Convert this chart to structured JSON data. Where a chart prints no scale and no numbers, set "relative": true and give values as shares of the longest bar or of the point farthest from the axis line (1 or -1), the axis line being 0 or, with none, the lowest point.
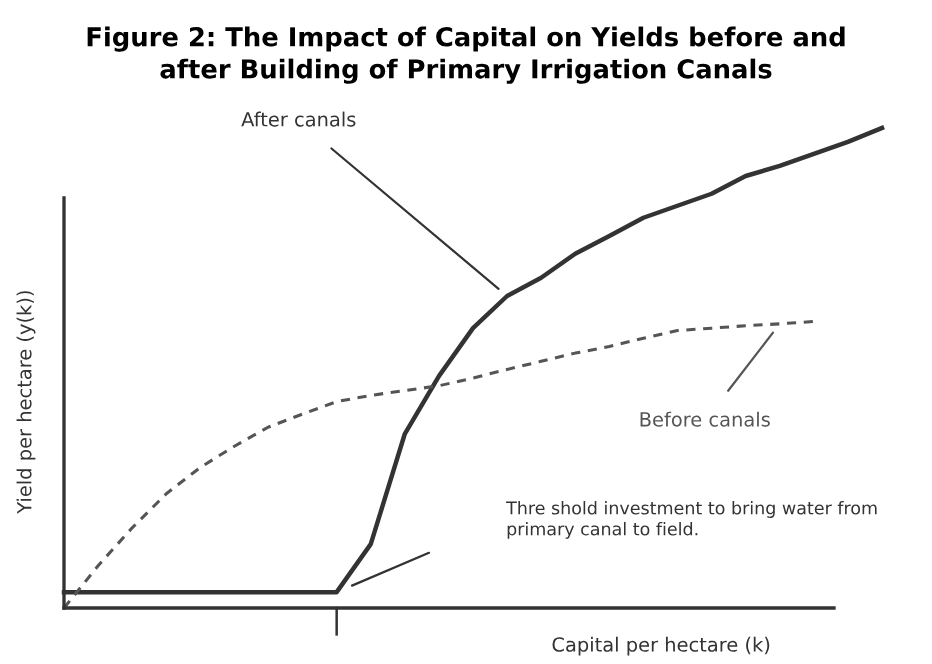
{
  "chart_data": {
    "type": "line",
    "relative": true,
    "title": "Figure 2: The Impact of Capital on Yields before and\nafter Building of Primary Irrigation Canals",
    "xlabel": "Capital per hectare (k)",
    "ylabel": "Yield per hectare (y(k))",
    "categories": [
      null,
      null,
      null,
      null,
      null,
      null,
      null,
      null,
      null,
      null,
      null,
      null,
      null,
      null,
      null,
      null,
      null,
      null,
      null,
      null,
      null,
      null,
      null,
      null,
      null
    ],
    "series": [
      {
        "name": "After canals",
        "color": "#333333",
        "line_style": "solid",
        "values": [
          0.033,
          0.033,
          0.033,
          0.033,
          0.033,
          0.033,
          0.033,
          0.033,
          0.033,
          0.133,
          0.363,
          0.483,
          0.583,
          0.65,
          0.688,
          0.738,
          0.775,
          0.813,
          0.838,
          0.863,
          0.9,
          0.921,
          0.946,
          0.971,
          1.0
        ]
      },
      {
        "name": "Before canals",
        "color": "#555555",
        "line_style": "dashed",
        "values": [
          0.0,
          0.088,
          0.167,
          0.238,
          0.293,
          0.337,
          0.377,
          0.404,
          0.43,
          0.443,
          0.453,
          0.463,
          0.479,
          0.497,
          0.514,
          0.531,
          0.545,
          0.562,
          0.578,
          0.583,
          0.588,
          0.592,
          0.597,
          null,
          null
        ]
      }
    ],
    "annotations": [
      "Thre shold investment to bring water from\nprimary canal to field."
    ]
  }
}
